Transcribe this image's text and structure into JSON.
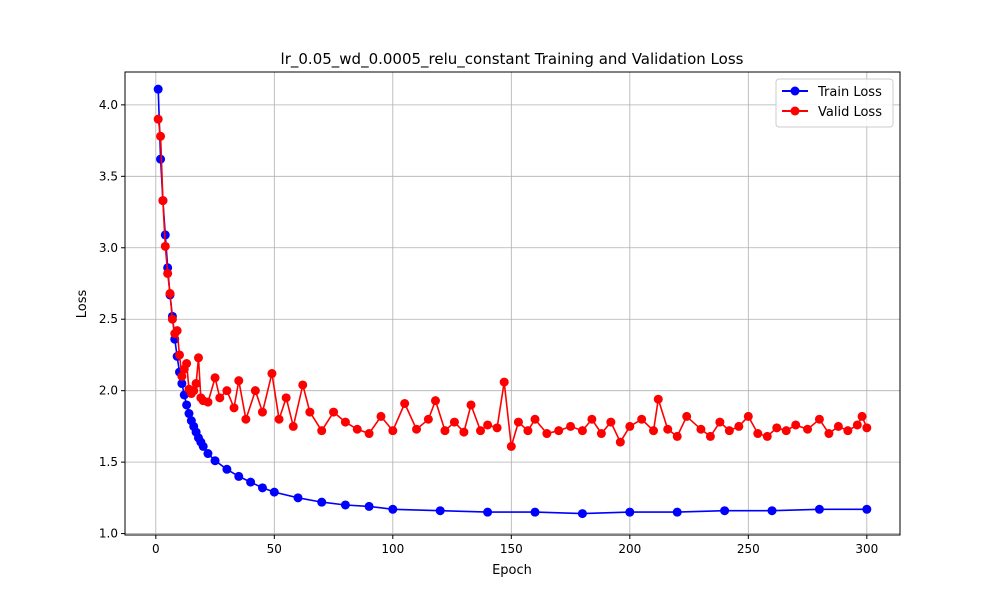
{
  "chart_data": {
    "type": "line",
    "title": "lr_0.05_wd_0.0005_relu_constant Training and Validation Loss",
    "xlabel": "Epoch",
    "ylabel": "Loss",
    "xlim": [
      -13,
      314
    ],
    "ylim": [
      0.99,
      4.23
    ],
    "x_ticks": [
      0,
      50,
      100,
      150,
      200,
      250,
      300
    ],
    "y_ticks": [
      1.0,
      1.5,
      2.0,
      2.5,
      3.0,
      3.5,
      4.0
    ],
    "grid": true,
    "legend_position": "top-right",
    "series": [
      {
        "name": "Train Loss",
        "color": "#0000ff",
        "marker": "circle",
        "x": [
          1,
          2,
          3,
          4,
          5,
          6,
          7,
          8,
          9,
          10,
          11,
          12,
          13,
          14,
          15,
          16,
          17,
          18,
          19,
          20,
          22,
          25,
          30,
          35,
          40,
          45,
          50,
          60,
          70,
          80,
          90,
          100,
          120,
          140,
          160,
          180,
          200,
          220,
          240,
          260,
          280,
          300
        ],
        "y": [
          4.11,
          3.62,
          3.33,
          3.09,
          2.86,
          2.67,
          2.52,
          2.36,
          2.24,
          2.13,
          2.05,
          1.97,
          1.9,
          1.84,
          1.79,
          1.75,
          1.71,
          1.67,
          1.64,
          1.61,
          1.56,
          1.51,
          1.45,
          1.4,
          1.36,
          1.32,
          1.29,
          1.25,
          1.22,
          1.2,
          1.19,
          1.17,
          1.16,
          1.15,
          1.15,
          1.14,
          1.15,
          1.15,
          1.16,
          1.16,
          1.17,
          1.17
        ]
      },
      {
        "name": "Valid Loss",
        "color": "#ff0000",
        "marker": "circle",
        "x": [
          1,
          2,
          3,
          4,
          5,
          6,
          7,
          8,
          9,
          10,
          11,
          12,
          13,
          14,
          15,
          16,
          17,
          18,
          19,
          20,
          22,
          25,
          27,
          30,
          33,
          35,
          38,
          42,
          45,
          49,
          52,
          55,
          58,
          62,
          65,
          70,
          75,
          80,
          85,
          90,
          95,
          100,
          105,
          110,
          115,
          118,
          122,
          126,
          130,
          133,
          137,
          140,
          144,
          147,
          150,
          153,
          157,
          160,
          165,
          170,
          175,
          180,
          184,
          188,
          192,
          196,
          200,
          205,
          210,
          212,
          216,
          220,
          224,
          230,
          234,
          238,
          242,
          246,
          250,
          254,
          258,
          262,
          266,
          270,
          275,
          280,
          284,
          288,
          292,
          296,
          298,
          300
        ],
        "y": [
          3.9,
          3.78,
          3.33,
          3.01,
          2.82,
          2.68,
          2.5,
          2.4,
          2.42,
          2.25,
          2.1,
          2.15,
          2.19,
          2.01,
          1.98,
          2.0,
          2.05,
          2.23,
          1.95,
          1.93,
          1.92,
          2.09,
          1.95,
          2.0,
          1.88,
          2.07,
          1.8,
          2.0,
          1.85,
          2.12,
          1.8,
          1.95,
          1.75,
          2.04,
          1.85,
          1.72,
          1.85,
          1.78,
          1.73,
          1.7,
          1.82,
          1.72,
          1.91,
          1.73,
          1.8,
          1.93,
          1.72,
          1.78,
          1.71,
          1.9,
          1.72,
          1.76,
          1.74,
          2.06,
          1.61,
          1.78,
          1.72,
          1.8,
          1.7,
          1.72,
          1.75,
          1.72,
          1.8,
          1.7,
          1.78,
          1.64,
          1.75,
          1.8,
          1.72,
          1.94,
          1.73,
          1.68,
          1.82,
          1.73,
          1.68,
          1.78,
          1.72,
          1.75,
          1.82,
          1.7,
          1.68,
          1.74,
          1.72,
          1.76,
          1.73,
          1.8,
          1.7,
          1.75,
          1.72,
          1.76,
          1.82,
          1.74
        ]
      }
    ]
  }
}
